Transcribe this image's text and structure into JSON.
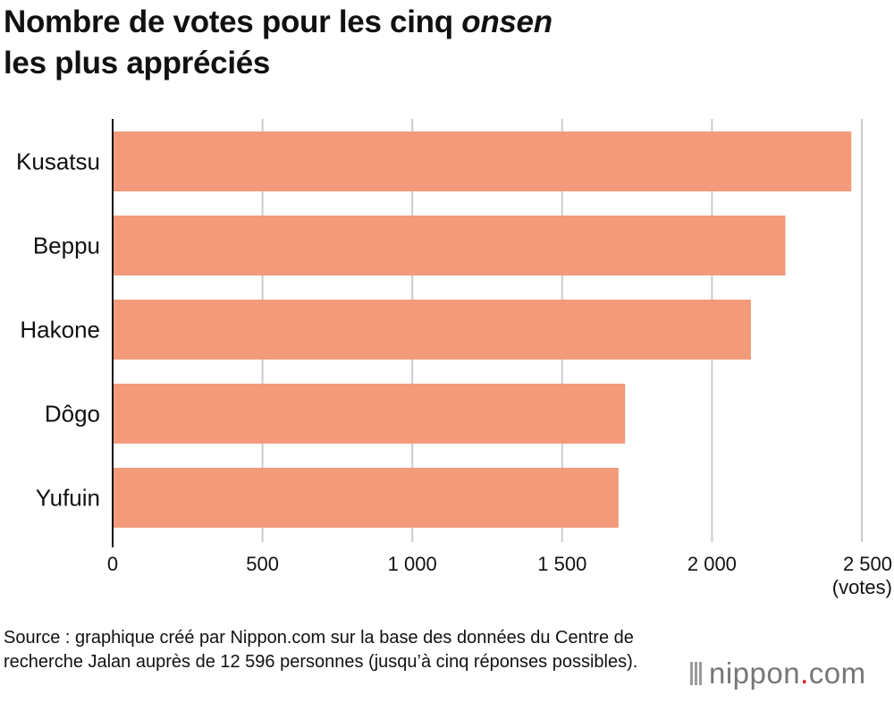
{
  "title_line1_prefix": "Nombre de votes pour les cinq ",
  "title_line1_em": "onsen",
  "title_line2": "les plus appréciés",
  "chart_data": {
    "type": "bar",
    "orientation": "horizontal",
    "categories": [
      "Kusatsu",
      "Beppu",
      "Hakone",
      "Dôgo",
      "Yufuin"
    ],
    "values": [
      2465,
      2245,
      2130,
      1710,
      1688
    ],
    "xlim": [
      0,
      2500
    ],
    "xticks": [
      0,
      500,
      1000,
      1500,
      2000,
      2500
    ],
    "xtick_labels": [
      "0",
      "500",
      "1 000",
      "1 500",
      "2 000",
      "2 500"
    ],
    "xlabel": "(votes)",
    "bar_color": "#f29a7a",
    "grid_color": "#cccccc",
    "grid": true
  },
  "source": "Source : graphique créé par Nippon.com sur la base des données du Centre de recherche Jalan auprès de 12 596 personnes (jusqu’à cinq réponses possibles).",
  "logo": {
    "name": "nippon",
    "dot": ".",
    "tld": "com",
    "accent": "#e60012"
  }
}
